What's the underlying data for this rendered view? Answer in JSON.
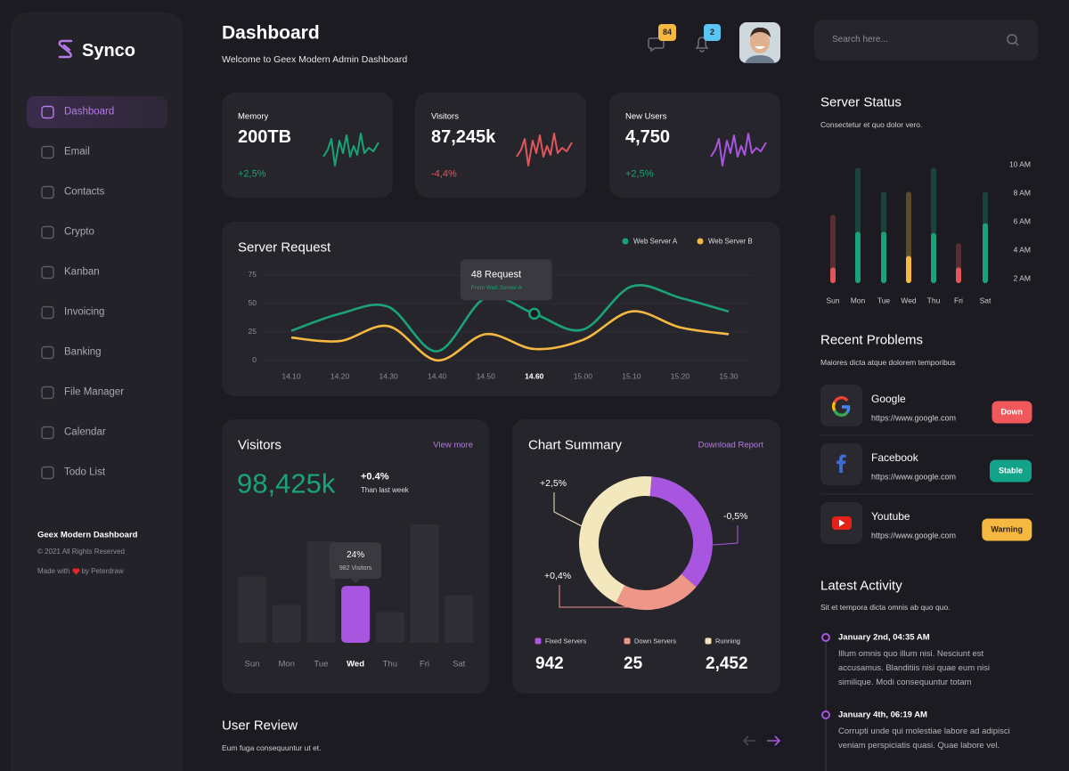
{
  "sidebar": {
    "brand": "Synco",
    "menu": [
      "Dashboard",
      "Email",
      "Contacts",
      "Crypto",
      "Kanban",
      "Invoicing",
      "Banking",
      "File Manager",
      "Calendar",
      "Todo List"
    ],
    "footer": {
      "title": "Geex Modern Dashboard",
      "copyright": "© 2021 All Rights Reserved",
      "made_with": "Made with",
      "author": "by Peterdraw"
    }
  },
  "header": {
    "title": "Dashboard",
    "subtitle": "Welcome to Geex Modern Admin Dashboard",
    "message_count": 84,
    "notification_count": 2
  },
  "search": {
    "placeholder": "Search here..."
  },
  "stats": [
    {
      "label": "Memory",
      "value": "200TB",
      "change": "+2,5%",
      "color": "#1aa37a"
    },
    {
      "label": "Visitors",
      "value": "87,245k",
      "change": "-4,4%",
      "color": "#e0565b"
    },
    {
      "label": "New Users",
      "value": "4,750",
      "change": "+2,5%",
      "color": "#a855e0"
    }
  ],
  "server_request": {
    "type": "line",
    "title": "Server Request",
    "categories": [
      "14.10",
      "14.20",
      "14.30",
      "14.40",
      "14.50",
      "14.60",
      "15.00",
      "15.10",
      "15.20",
      "15.30"
    ],
    "series": [
      {
        "name": "Web Server A",
        "color": "#1aa37a",
        "values": [
          26,
          41,
          47,
          8,
          55,
          41,
          27,
          65,
          55,
          43
        ]
      },
      {
        "name": "Web Server B",
        "color": "#f5b942",
        "values": [
          20,
          17,
          30,
          0,
          23,
          10,
          18,
          43,
          29,
          23
        ]
      }
    ],
    "ylim": [
      -8,
      82
    ],
    "yticks": [
      0,
      25,
      50,
      75
    ],
    "grid": true,
    "marker": 5,
    "tooltip": {
      "title": "48 Request",
      "subtitle": "From Web Server A"
    }
  },
  "visitors": {
    "type": "bar",
    "title": "Visitors",
    "link": "View more",
    "total": "98,425k",
    "change": "+0.4%",
    "change_note": "Than last week",
    "categories": [
      "Sun",
      "Mon",
      "Tue",
      "Wed",
      "Thu",
      "Fri",
      "Sat"
    ],
    "values": [
      28,
      16,
      43,
      24,
      13,
      50,
      20
    ],
    "ylim": [
      0,
      50
    ],
    "color": "#302f35",
    "highlight": 3,
    "highlight_color": "#a855e0",
    "tooltip": {
      "value": "24%",
      "detail": "982 Visitors"
    }
  },
  "chart_summary": {
    "type": "pie",
    "title": "Chart Summary",
    "link": "Download Report",
    "segments": [
      {
        "name": "Fixed Servers",
        "color": "#a855e0",
        "value": 35,
        "total": "942",
        "change": "-0,5%"
      },
      {
        "name": "Down Servers",
        "color": "#ee9788",
        "value": 21,
        "total": "25",
        "change": "+0,4%"
      },
      {
        "name": "Running",
        "color": "#f3e7bd",
        "value": 44,
        "total": "2,452",
        "change": "+2,5%"
      }
    ]
  },
  "server_status": {
    "type": "bar",
    "title": "Server Status",
    "subtitle": "Consectetur et quo dolor vero.",
    "categories": [
      "Sun",
      "Mon",
      "Tue",
      "Wed",
      "Thu",
      "Fri",
      "Sat"
    ],
    "peak": [
      6.5,
      9.8,
      8.1,
      8.1,
      9.8,
      4.5,
      8.1
    ],
    "current": [
      2.8,
      5.3,
      5.3,
      3.6,
      5.2,
      2.8,
      5.9
    ],
    "colors": [
      "#e0565b",
      "#1aa37a",
      "#1aa37a",
      "#f5b942",
      "#1aa37a",
      "#e0565b",
      "#1aa37a"
    ],
    "ylim": [
      1.7,
      10.5
    ],
    "yticks": [
      {
        "value": 2,
        "label": "2 AM"
      },
      {
        "value": 4,
        "label": "4 AM"
      },
      {
        "value": 6,
        "label": "6 AM"
      },
      {
        "value": 8,
        "label": "8 AM"
      },
      {
        "value": 10,
        "label": "10 AM"
      }
    ]
  },
  "recent_problems": {
    "title": "Recent Problems",
    "subtitle": "Maiores dicta atque dolorem temporibus",
    "items": [
      {
        "name": "Google",
        "url": "https://www.google.com",
        "status": "Down",
        "status_color": "#f0585b"
      },
      {
        "name": "Facebook",
        "url": "https://www.google.com",
        "status": "Stable",
        "status_color": "#13a389"
      },
      {
        "name": "Youtube",
        "url": "https://www.google.com",
        "status": "Warning",
        "status_color": "#f5b942"
      }
    ]
  },
  "latest_activity": {
    "title": "Latest Activity",
    "subtitle": "Sit et tempora dicta omnis ab quo quo.",
    "items": [
      {
        "date": "January 2nd, 04:35 AM",
        "text": "Illum omnis quo illum nisi. Nesciunt est accusamus. Blanditiis nisi quae eum nisi similique. Modi consequuntur totam"
      },
      {
        "date": "January 4th, 06:19 AM",
        "text": "Corrupti unde qui molestiae labore ad adipisci veniam perspiciatis quasi. Quae labore vel."
      }
    ]
  },
  "user_review": {
    "title": "User Review",
    "subtitle": "Eum fuga consequuntur ut et."
  }
}
